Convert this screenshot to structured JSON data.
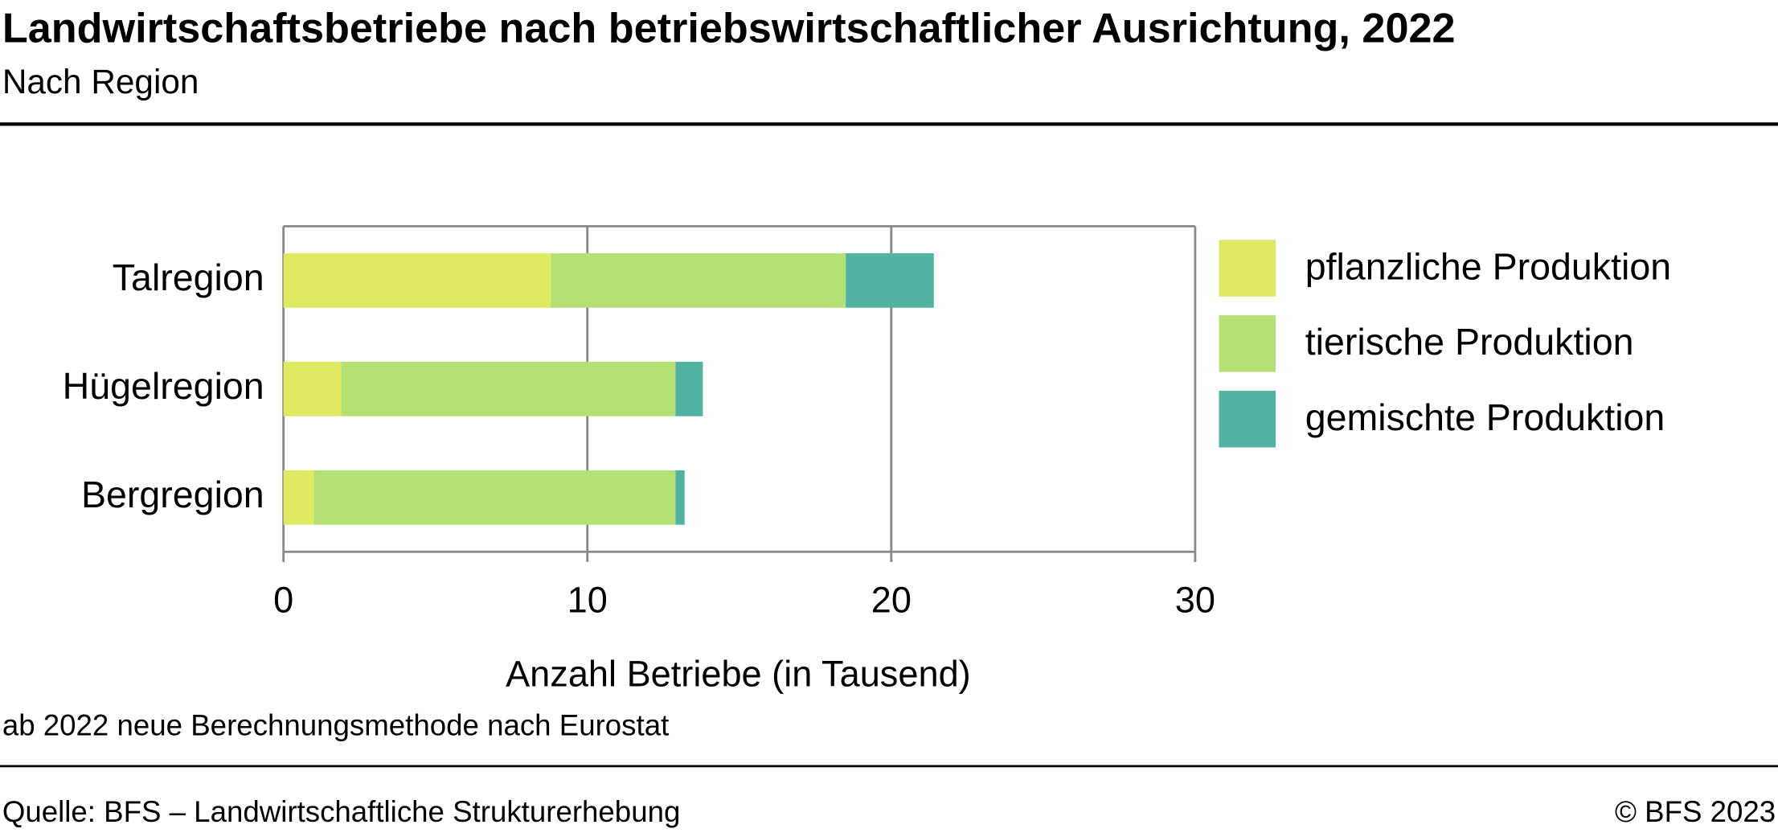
{
  "chart_data": {
    "type": "stacked-barh",
    "title": "Landwirtschaftsbetriebe nach betriebswirtschaftlicher Ausrichtung, 2022",
    "subtitle": "Nach Region",
    "x_label": "Anzahl Betriebe (in Tausend)",
    "note": "ab 2022 neue Berechnungsmethode nach Eurostat",
    "source": "Quelle: BFS – Landwirtschaftliche Strukturerhebung",
    "copyright": "© BFS 2023",
    "categories": [
      "Talregion",
      "Hügelregion",
      "Bergregion"
    ],
    "series": [
      {
        "name": "pflanzliche Produktion",
        "color": "#e0e962",
        "values": [
          8.8,
          1.9,
          1.0
        ]
      },
      {
        "name": "tierische Produktion",
        "color": "#b5e076",
        "values": [
          9.7,
          11.0,
          11.9
        ]
      },
      {
        "name": "gemischte Produktion",
        "color": "#52b3a2",
        "values": [
          2.9,
          0.9,
          0.3
        ]
      }
    ],
    "xlim": [
      0,
      30
    ],
    "xticks": [
      0,
      10,
      20,
      30
    ],
    "grid": true,
    "legend": "right"
  }
}
